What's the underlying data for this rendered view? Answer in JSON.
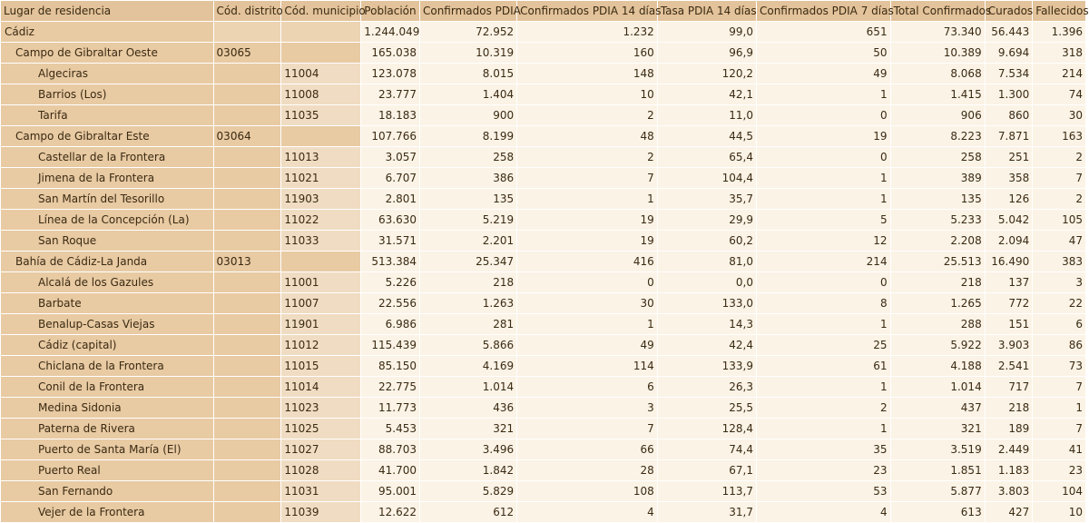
{
  "headers": [
    "Lugar de residencia",
    "Cód. distrito",
    "Cód. municipio",
    "Población",
    "Confirmados PDIA",
    "Confirmados PDIA 14 días",
    "Tasa PDIA 14 días",
    "Confirmados PDIA 7 días",
    "Total Confirmados",
    "Curados",
    "Fallecidos"
  ],
  "rows": [
    {
      "level": 0,
      "name": "Cádiz",
      "district": "",
      "municipality": "",
      "poblacion": "1.244.049",
      "confirmados": "72.952",
      "conf14": "1.232",
      "tasa14": "99,0",
      "conf7": "651",
      "total": "73.340",
      "curados": "56.443",
      "fallecidos": "1.396"
    },
    {
      "level": 1,
      "name": "Campo de Gibraltar Oeste",
      "district": "03065",
      "municipality": "",
      "poblacion": "165.038",
      "confirmados": "10.319",
      "conf14": "160",
      "tasa14": "96,9",
      "conf7": "50",
      "total": "10.389",
      "curados": "9.694",
      "fallecidos": "318"
    },
    {
      "level": 2,
      "name": "Algeciras",
      "district": "",
      "municipality": "11004",
      "poblacion": "123.078",
      "confirmados": "8.015",
      "conf14": "148",
      "tasa14": "120,2",
      "conf7": "49",
      "total": "8.068",
      "curados": "7.534",
      "fallecidos": "214"
    },
    {
      "level": 2,
      "name": "Barrios (Los)",
      "district": "",
      "municipality": "11008",
      "poblacion": "23.777",
      "confirmados": "1.404",
      "conf14": "10",
      "tasa14": "42,1",
      "conf7": "1",
      "total": "1.415",
      "curados": "1.300",
      "fallecidos": "74"
    },
    {
      "level": 2,
      "name": "Tarifa",
      "district": "",
      "municipality": "11035",
      "poblacion": "18.183",
      "confirmados": "900",
      "conf14": "2",
      "tasa14": "11,0",
      "conf7": "0",
      "total": "906",
      "curados": "860",
      "fallecidos": "30"
    },
    {
      "level": 1,
      "name": "Campo de Gibraltar Este",
      "district": "03064",
      "municipality": "",
      "poblacion": "107.766",
      "confirmados": "8.199",
      "conf14": "48",
      "tasa14": "44,5",
      "conf7": "19",
      "total": "8.223",
      "curados": "7.871",
      "fallecidos": "163"
    },
    {
      "level": 2,
      "name": "Castellar de la Frontera",
      "district": "",
      "municipality": "11013",
      "poblacion": "3.057",
      "confirmados": "258",
      "conf14": "2",
      "tasa14": "65,4",
      "conf7": "0",
      "total": "258",
      "curados": "251",
      "fallecidos": "2"
    },
    {
      "level": 2,
      "name": "Jimena de la Frontera",
      "district": "",
      "municipality": "11021",
      "poblacion": "6.707",
      "confirmados": "386",
      "conf14": "7",
      "tasa14": "104,4",
      "conf7": "1",
      "total": "389",
      "curados": "358",
      "fallecidos": "7"
    },
    {
      "level": 2,
      "name": "San Martín del Tesorillo",
      "district": "",
      "municipality": "11903",
      "poblacion": "2.801",
      "confirmados": "135",
      "conf14": "1",
      "tasa14": "35,7",
      "conf7": "1",
      "total": "135",
      "curados": "126",
      "fallecidos": "2"
    },
    {
      "level": 2,
      "name": "Línea de la Concepción (La)",
      "district": "",
      "municipality": "11022",
      "poblacion": "63.630",
      "confirmados": "5.219",
      "conf14": "19",
      "tasa14": "29,9",
      "conf7": "5",
      "total": "5.233",
      "curados": "5.042",
      "fallecidos": "105"
    },
    {
      "level": 2,
      "name": "San Roque",
      "district": "",
      "municipality": "11033",
      "poblacion": "31.571",
      "confirmados": "2.201",
      "conf14": "19",
      "tasa14": "60,2",
      "conf7": "12",
      "total": "2.208",
      "curados": "2.094",
      "fallecidos": "47"
    },
    {
      "level": 1,
      "name": "Bahía de Cádiz-La Janda",
      "district": "03013",
      "municipality": "",
      "poblacion": "513.384",
      "confirmados": "25.347",
      "conf14": "416",
      "tasa14": "81,0",
      "conf7": "214",
      "total": "25.513",
      "curados": "16.490",
      "fallecidos": "383"
    },
    {
      "level": 2,
      "name": "Alcalá de los Gazules",
      "district": "",
      "municipality": "11001",
      "poblacion": "5.226",
      "confirmados": "218",
      "conf14": "0",
      "tasa14": "0,0",
      "conf7": "0",
      "total": "218",
      "curados": "137",
      "fallecidos": "3"
    },
    {
      "level": 2,
      "name": "Barbate",
      "district": "",
      "municipality": "11007",
      "poblacion": "22.556",
      "confirmados": "1.263",
      "conf14": "30",
      "tasa14": "133,0",
      "conf7": "8",
      "total": "1.265",
      "curados": "772",
      "fallecidos": "22"
    },
    {
      "level": 2,
      "name": "Benalup-Casas Viejas",
      "district": "",
      "municipality": "11901",
      "poblacion": "6.986",
      "confirmados": "281",
      "conf14": "1",
      "tasa14": "14,3",
      "conf7": "1",
      "total": "288",
      "curados": "151",
      "fallecidos": "6"
    },
    {
      "level": 2,
      "name": "Cádiz (capital)",
      "district": "",
      "municipality": "11012",
      "poblacion": "115.439",
      "confirmados": "5.866",
      "conf14": "49",
      "tasa14": "42,4",
      "conf7": "25",
      "total": "5.922",
      "curados": "3.903",
      "fallecidos": "86"
    },
    {
      "level": 2,
      "name": "Chiclana de la Frontera",
      "district": "",
      "municipality": "11015",
      "poblacion": "85.150",
      "confirmados": "4.169",
      "conf14": "114",
      "tasa14": "133,9",
      "conf7": "61",
      "total": "4.188",
      "curados": "2.541",
      "fallecidos": "73"
    },
    {
      "level": 2,
      "name": "Conil de la Frontera",
      "district": "",
      "municipality": "11014",
      "poblacion": "22.775",
      "confirmados": "1.014",
      "conf14": "6",
      "tasa14": "26,3",
      "conf7": "1",
      "total": "1.014",
      "curados": "717",
      "fallecidos": "7"
    },
    {
      "level": 2,
      "name": "Medina Sidonia",
      "district": "",
      "municipality": "11023",
      "poblacion": "11.773",
      "confirmados": "436",
      "conf14": "3",
      "tasa14": "25,5",
      "conf7": "2",
      "total": "437",
      "curados": "218",
      "fallecidos": "1"
    },
    {
      "level": 2,
      "name": "Paterna de Rivera",
      "district": "",
      "municipality": "11025",
      "poblacion": "5.453",
      "confirmados": "321",
      "conf14": "7",
      "tasa14": "128,4",
      "conf7": "1",
      "total": "321",
      "curados": "189",
      "fallecidos": "7"
    },
    {
      "level": 2,
      "name": "Puerto de Santa María (El)",
      "district": "",
      "municipality": "11027",
      "poblacion": "88.703",
      "confirmados": "3.496",
      "conf14": "66",
      "tasa14": "74,4",
      "conf7": "35",
      "total": "3.519",
      "curados": "2.449",
      "fallecidos": "41"
    },
    {
      "level": 2,
      "name": "Puerto Real",
      "district": "",
      "municipality": "11028",
      "poblacion": "41.700",
      "confirmados": "1.842",
      "conf14": "28",
      "tasa14": "67,1",
      "conf7": "23",
      "total": "1.851",
      "curados": "1.183",
      "fallecidos": "23"
    },
    {
      "level": 2,
      "name": "San Fernando",
      "district": "",
      "municipality": "11031",
      "poblacion": "95.001",
      "confirmados": "5.829",
      "conf14": "108",
      "tasa14": "113,7",
      "conf7": "53",
      "total": "5.877",
      "curados": "3.803",
      "fallecidos": "104"
    },
    {
      "level": 2,
      "name": "Vejer de la Frontera",
      "district": "",
      "municipality": "11039",
      "poblacion": "12.622",
      "confirmados": "612",
      "conf14": "4",
      "tasa14": "31,7",
      "conf7": "4",
      "total": "613",
      "curados": "427",
      "fallecidos": "10"
    }
  ]
}
